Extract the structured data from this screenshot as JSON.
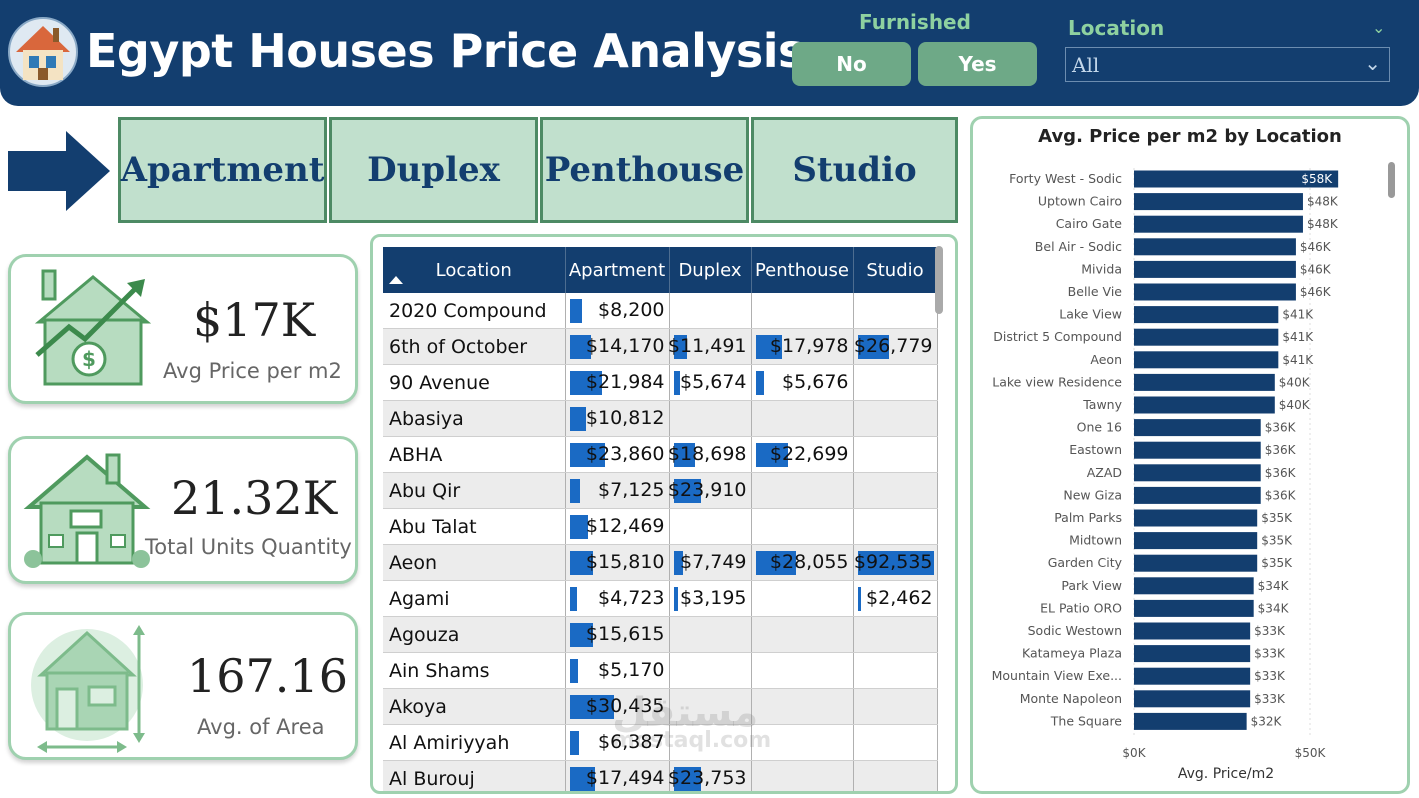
{
  "header": {
    "title": "Egypt Houses Price Analysis",
    "furnished_label": "Furnished",
    "furnished_no": "No",
    "furnished_yes": "Yes",
    "location_label": "Location",
    "location_value": "All",
    "logo_icon": "house-logo-icon"
  },
  "types": [
    "Apartment",
    "Duplex",
    "Penthouse",
    "Studio"
  ],
  "kpis": [
    {
      "value": "$17K",
      "label": "Avg Price per m2",
      "icon": "house-price-growth-icon"
    },
    {
      "value": "21.32K",
      "label": "Total Units Quantity",
      "icon": "house-units-icon"
    },
    {
      "value": "167.16",
      "label": "Avg. of Area",
      "icon": "house-area-icon"
    }
  ],
  "matrix": {
    "headers": [
      "Location",
      "Apartment",
      "Duplex",
      "Penthouse",
      "Studio"
    ],
    "bar_color": "#1a6ac4",
    "rows": [
      {
        "location": "2020 Compound",
        "apartment": "$8,200",
        "duplex": "",
        "penthouse": "",
        "studio": "",
        "raw": [
          8200,
          0,
          0,
          0
        ]
      },
      {
        "location": "6th of October",
        "apartment": "$14,170",
        "duplex": "$11,491",
        "penthouse": "$17,978",
        "studio": "$26,779",
        "raw": [
          14170,
          11491,
          17978,
          26779
        ]
      },
      {
        "location": "90 Avenue",
        "apartment": "$21,984",
        "duplex": "$5,674",
        "penthouse": "$5,676",
        "studio": "",
        "raw": [
          21984,
          5674,
          5676,
          0
        ]
      },
      {
        "location": "Abasiya",
        "apartment": "$10,812",
        "duplex": "",
        "penthouse": "",
        "studio": "",
        "raw": [
          10812,
          0,
          0,
          0
        ]
      },
      {
        "location": "ABHA",
        "apartment": "$23,860",
        "duplex": "$18,698",
        "penthouse": "$22,699",
        "studio": "",
        "raw": [
          23860,
          18698,
          22699,
          0
        ]
      },
      {
        "location": "Abu Qir",
        "apartment": "$7,125",
        "duplex": "$23,910",
        "penthouse": "",
        "studio": "",
        "raw": [
          7125,
          23910,
          0,
          0
        ]
      },
      {
        "location": "Abu Talat",
        "apartment": "$12,469",
        "duplex": "",
        "penthouse": "",
        "studio": "",
        "raw": [
          12469,
          0,
          0,
          0
        ]
      },
      {
        "location": "Aeon",
        "apartment": "$15,810",
        "duplex": "$7,749",
        "penthouse": "$28,055",
        "studio": "$92,535",
        "raw": [
          15810,
          7749,
          28055,
          92535
        ]
      },
      {
        "location": "Agami",
        "apartment": "$4,723",
        "duplex": "$3,195",
        "penthouse": "",
        "studio": "$2,462",
        "raw": [
          4723,
          3195,
          0,
          2462
        ]
      },
      {
        "location": "Agouza",
        "apartment": "$15,615",
        "duplex": "",
        "penthouse": "",
        "studio": "",
        "raw": [
          15615,
          0,
          0,
          0
        ]
      },
      {
        "location": "Ain Shams",
        "apartment": "$5,170",
        "duplex": "",
        "penthouse": "",
        "studio": "",
        "raw": [
          5170,
          0,
          0,
          0
        ]
      },
      {
        "location": "Akoya",
        "apartment": "$30,435",
        "duplex": "",
        "penthouse": "",
        "studio": "",
        "raw": [
          30435,
          0,
          0,
          0
        ]
      },
      {
        "location": "Al Amiriyyah",
        "apartment": "$6,387",
        "duplex": "",
        "penthouse": "",
        "studio": "",
        "raw": [
          6387,
          0,
          0,
          0
        ]
      },
      {
        "location": "Al Burouj",
        "apartment": "$17,494",
        "duplex": "$23,753",
        "penthouse": "",
        "studio": "",
        "raw": [
          17494,
          23753,
          0,
          0
        ]
      }
    ]
  },
  "chart_data": {
    "type": "bar",
    "orientation": "horizontal",
    "title": "Avg. Price per m2 by Location",
    "xlabel": "Avg. Price/m2",
    "ylabel": "",
    "xlim": [
      0,
      60000
    ],
    "x_ticks": [
      0,
      50000
    ],
    "x_tick_labels": [
      "$0K",
      "$50K"
    ],
    "color": "#133e6f",
    "categories": [
      "Forty West - Sodic",
      "Uptown Cairo",
      "Cairo Gate",
      "Bel Air - Sodic",
      "Mivida",
      "Belle Vie",
      "Lake View",
      "District 5 Compound",
      "Aeon",
      "Lake view Residence",
      "Tawny",
      "One 16",
      "Eastown",
      "AZAD",
      "New Giza",
      "Palm Parks",
      "Midtown",
      "Garden City",
      "Park View",
      "EL Patio ORO",
      "Sodic Westown",
      "Katameya Plaza",
      "Mountain View Exe...",
      "Monte Napoleon",
      "The Square"
    ],
    "values": [
      58000,
      48000,
      48000,
      46000,
      46000,
      46000,
      41000,
      41000,
      41000,
      40000,
      40000,
      36000,
      36000,
      36000,
      36000,
      35000,
      35000,
      35000,
      34000,
      34000,
      33000,
      33000,
      33000,
      33000,
      32000
    ],
    "labels": [
      "$58K",
      "$48K",
      "$48K",
      "$46K",
      "$46K",
      "$46K",
      "$41K",
      "$41K",
      "$41K",
      "$40K",
      "$40K",
      "$36K",
      "$36K",
      "$36K",
      "$36K",
      "$35K",
      "$35K",
      "$35K",
      "$34K",
      "$34K",
      "$33K",
      "$33K",
      "$33K",
      "$33K",
      "$32K"
    ]
  },
  "watermark": "مستقل",
  "watermark_sub": "mostaql.com"
}
